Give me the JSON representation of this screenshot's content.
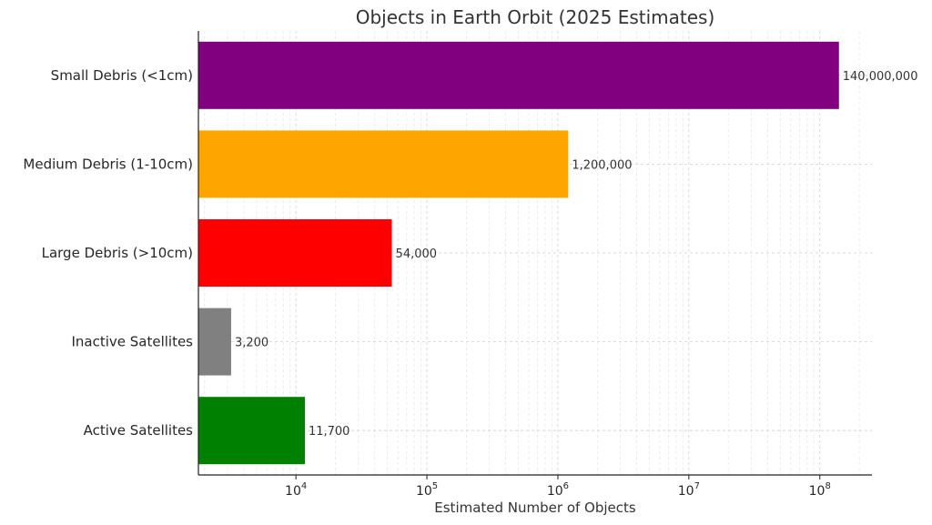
{
  "chart_data": {
    "type": "bar",
    "orientation": "horizontal",
    "title": "Objects in Earth Orbit (2025 Estimates)",
    "xlabel": "Estimated Number of Objects",
    "ylabel": "",
    "xscale": "log",
    "xlim": [
      1800,
      250000000
    ],
    "grid": true,
    "x_ticks": [
      {
        "value": 10000,
        "base": "10",
        "exp": "4"
      },
      {
        "value": 100000,
        "base": "10",
        "exp": "5"
      },
      {
        "value": 1000000,
        "base": "10",
        "exp": "6"
      },
      {
        "value": 10000000,
        "base": "10",
        "exp": "7"
      },
      {
        "value": 100000000,
        "base": "10",
        "exp": "8"
      }
    ],
    "categories": [
      "Small Debris (<1cm)",
      "Medium Debris (1-10cm)",
      "Large Debris (>10cm)",
      "Inactive Satellites",
      "Active Satellites"
    ],
    "values": [
      140000000,
      1200000,
      54000,
      3200,
      11700
    ],
    "value_labels": [
      "140,000,000",
      "1,200,000",
      "54,000",
      "3,200",
      "11,700"
    ],
    "colors": [
      "#800080",
      "#ffa500",
      "#ff0000",
      "#808080",
      "#008000"
    ]
  }
}
